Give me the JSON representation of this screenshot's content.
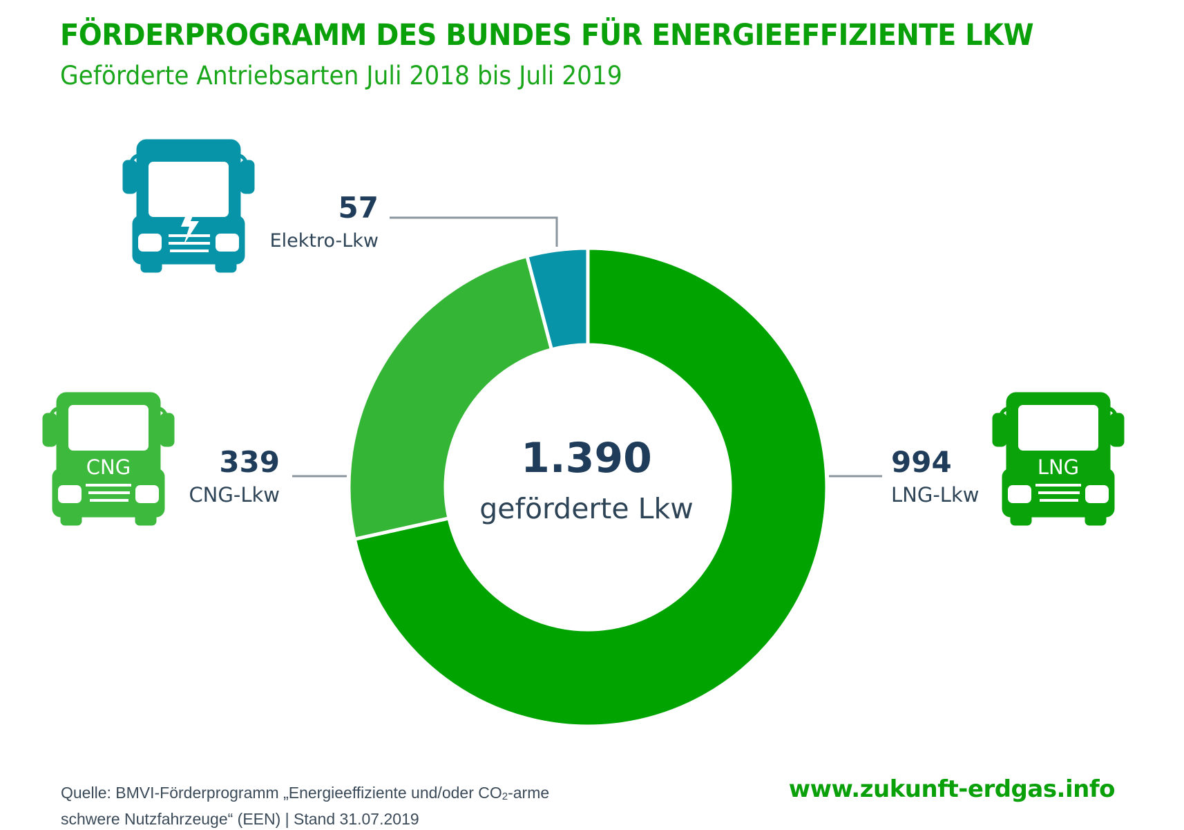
{
  "header": {
    "title": "FÖRDERPROGRAMM DES BUNDES FÜR ENERGIEEFFIZIENTE LKW",
    "subtitle": "Geförderte Antriebsarten Juli 2018 bis Juli 2019"
  },
  "chart_data": {
    "type": "pie",
    "variant": "donut",
    "title": "FÖRDERPROGRAMM DES BUNDES FÜR ENERGIEEFFIZIENTE LKW",
    "subtitle": "Geförderte Antriebsarten Juli 2018 bis Juli 2019",
    "center_value": "1.390",
    "center_label": "geförderte Lkw",
    "total": 1390,
    "slices": [
      {
        "name": "LNG-Lkw",
        "value": 994,
        "value_label": "994",
        "color": "#00a300",
        "icon": "lng-truck-icon",
        "icon_text": "LNG"
      },
      {
        "name": "CNG-Lkw",
        "value": 339,
        "value_label": "339",
        "color": "#35b535",
        "icon": "cng-truck-icon",
        "icon_text": "CNG"
      },
      {
        "name": "Elektro-Lkw",
        "value": 57,
        "value_label": "57",
        "color": "#0894a8",
        "icon": "electric-truck-icon",
        "icon_text": ""
      }
    ]
  },
  "footer": {
    "source_prefix": "Quelle: BMVI-Förderprogramm „Energieeffiziente und/oder CO",
    "source_sub": "2",
    "source_suffix": "-arme",
    "source_line2": "schwere Nutzfahrzeuge“ (EEN) | Stand 31.07.2019",
    "website": "www.zukunft-erdgas.info"
  },
  "colors": {
    "title": "#0aa00a",
    "value_text": "#1f3d5a",
    "leader_line": "#8a959e"
  }
}
